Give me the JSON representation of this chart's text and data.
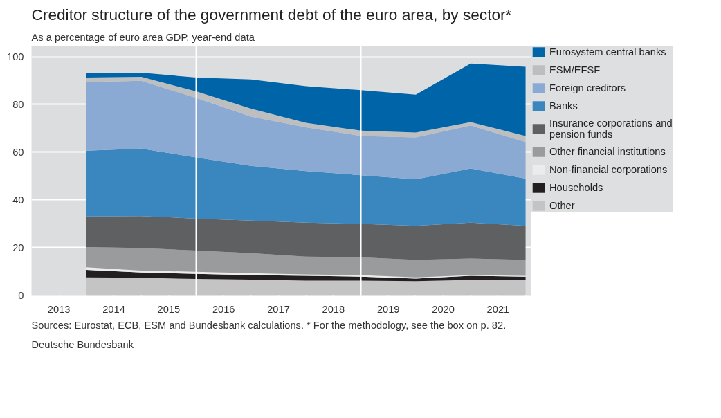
{
  "chart_data": {
    "type": "area",
    "stacked": true,
    "title": "Creditor structure of the government debt of the euro area, by sector*",
    "subtitle": "As a percentage of euro area GDP, year-end data",
    "x": [
      2013,
      2014,
      2015,
      2016,
      2017,
      2018,
      2019,
      2020,
      2021
    ],
    "xlim": [
      2012,
      2021.1
    ],
    "xticks": [
      {
        "value": 2012,
        "label": null
      },
      {
        "value": 2012.5,
        "label": "2013"
      },
      {
        "value": 2013,
        "label": null
      },
      {
        "value": 2013.5,
        "label": "2014"
      },
      {
        "value": 2014,
        "label": null
      },
      {
        "value": 2014.5,
        "label": "2015"
      },
      {
        "value": 2015,
        "label": null
      },
      {
        "value": 2015.5,
        "label": "2016"
      },
      {
        "value": 2016,
        "label": null
      },
      {
        "value": 2016.5,
        "label": "2017"
      },
      {
        "value": 2017,
        "label": null
      },
      {
        "value": 2017.5,
        "label": "2018"
      },
      {
        "value": 2018,
        "label": null
      },
      {
        "value": 2018.5,
        "label": "2019"
      },
      {
        "value": 2019,
        "label": null
      },
      {
        "value": 2019.5,
        "label": "2020"
      },
      {
        "value": 2020,
        "label": null
      },
      {
        "value": 2020.5,
        "label": "2021"
      },
      {
        "value": 2021,
        "label": null
      }
    ],
    "ylim": [
      0,
      104.5
    ],
    "yticks": [
      0,
      20,
      40,
      60,
      80,
      100
    ],
    "grid": "y",
    "legend": "right",
    "ref_lines": [
      {
        "axis": "x",
        "value": 2015,
        "color": "#ffffff"
      },
      {
        "axis": "x",
        "value": 2018,
        "color": "#ffffff"
      }
    ],
    "series": [
      {
        "name": "Other",
        "color": "#c4c4c4",
        "values": [
          7.5,
          7.3,
          6.8,
          6.5,
          6.1,
          6.1,
          5.9,
          6.4,
          6.4
        ]
      },
      {
        "name": "Households",
        "color": "#231f20",
        "values": [
          3.1,
          2.2,
          2.1,
          1.9,
          2.0,
          1.7,
          1.1,
          1.7,
          1.4
        ]
      },
      {
        "name": "Non-financial corporations",
        "color": "#ececed",
        "values": [
          1.1,
          0.8,
          0.9,
          0.8,
          0.6,
          0.6,
          0.5,
          0.3,
          0.3
        ]
      },
      {
        "name": "Other financial institutions",
        "color": "#9a9b9d",
        "values": [
          8.4,
          9.5,
          8.9,
          8.4,
          7.5,
          7.5,
          7.3,
          7.0,
          6.7
        ]
      },
      {
        "name": "Insurance corporations and pension funds",
        "color": "#5f6062",
        "values": [
          12.9,
          13.4,
          13.4,
          13.7,
          14.2,
          14.0,
          14.3,
          15.0,
          14.3
        ]
      },
      {
        "name": "Banks",
        "color": "#3a87c0",
        "values": [
          27.6,
          28.3,
          25.7,
          22.9,
          21.6,
          20.4,
          19.5,
          22.7,
          19.8
        ]
      },
      {
        "name": "Foreign creditors",
        "color": "#8aaad3",
        "values": [
          28.8,
          28.4,
          24.9,
          20.7,
          18.4,
          16.5,
          17.6,
          18.1,
          15.3
        ]
      },
      {
        "name": "ESM/EFSF",
        "color": "#bcbec0",
        "values": [
          1.9,
          1.7,
          2.8,
          3.3,
          1.9,
          2.2,
          2.0,
          1.4,
          2.6
        ]
      },
      {
        "name": "Eurosystem central banks",
        "color": "#0064a8",
        "values": [
          1.7,
          1.7,
          5.8,
          12.3,
          15.4,
          17.0,
          15.9,
          24.6,
          29.0
        ]
      }
    ],
    "annotations": [
      "Sources: Eurostat, ECB, ESM and Bundesbank calculations. * For the methodology, see the box on p. 82.",
      "Deutsche Bundesbank"
    ]
  }
}
